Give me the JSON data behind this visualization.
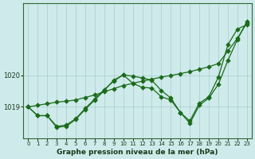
{
  "xlabel": "Graphe pression niveau de la mer (hPa)",
  "bg_color": "#ceeaea",
  "plot_bg_color": "#ceeaea",
  "grid_color": "#aacccc",
  "line_color": "#1a6b1a",
  "marker_color": "#1a6b1a",
  "xlim": [
    -0.5,
    23.5
  ],
  "ylim": [
    1018.0,
    1022.3
  ],
  "yticks": [
    1019,
    1020
  ],
  "xticks": [
    0,
    1,
    2,
    3,
    4,
    5,
    6,
    7,
    8,
    9,
    10,
    11,
    12,
    13,
    14,
    15,
    16,
    17,
    18,
    19,
    20,
    21,
    22,
    23
  ],
  "curve1_x": [
    0,
    1,
    2,
    3,
    4,
    5,
    6,
    7,
    8,
    9,
    10,
    11,
    12,
    13,
    14,
    15,
    16,
    17,
    18,
    19,
    20,
    21,
    22,
    23
  ],
  "curve1_y": [
    1019.0,
    1018.72,
    1018.72,
    1018.38,
    1018.42,
    1018.62,
    1018.95,
    1019.25,
    1019.55,
    1019.82,
    1020.02,
    1019.75,
    1019.62,
    1019.6,
    1019.32,
    1019.22,
    1018.82,
    1018.55,
    1019.12,
    1019.32,
    1019.95,
    1020.98,
    1021.48,
    1021.62
  ],
  "curve2_x": [
    0,
    1,
    2,
    3,
    4,
    5,
    6,
    7,
    8,
    9,
    10,
    11,
    12,
    13,
    14,
    15,
    16,
    17,
    18,
    19,
    20,
    21,
    22,
    23
  ],
  "curve2_y": [
    1019.0,
    1018.72,
    1018.72,
    1018.35,
    1018.38,
    1018.6,
    1018.92,
    1019.22,
    1019.52,
    1019.85,
    1020.02,
    1019.98,
    1019.92,
    1019.85,
    1019.52,
    1019.28,
    1018.82,
    1018.48,
    1019.05,
    1019.28,
    1019.72,
    1020.48,
    1021.15,
    1021.72
  ],
  "curve3_x": [
    0,
    1,
    2,
    3,
    4,
    5,
    6,
    7,
    8,
    9,
    10,
    11,
    12,
    13,
    14,
    15,
    16,
    17,
    18,
    19,
    20,
    21,
    22,
    23
  ],
  "curve3_y": [
    1019.0,
    1019.05,
    1019.1,
    1019.15,
    1019.18,
    1019.22,
    1019.3,
    1019.38,
    1019.48,
    1019.58,
    1019.68,
    1019.75,
    1019.82,
    1019.88,
    1019.95,
    1020.0,
    1020.06,
    1020.12,
    1020.2,
    1020.28,
    1020.38,
    1020.78,
    1021.18,
    1021.68
  ]
}
